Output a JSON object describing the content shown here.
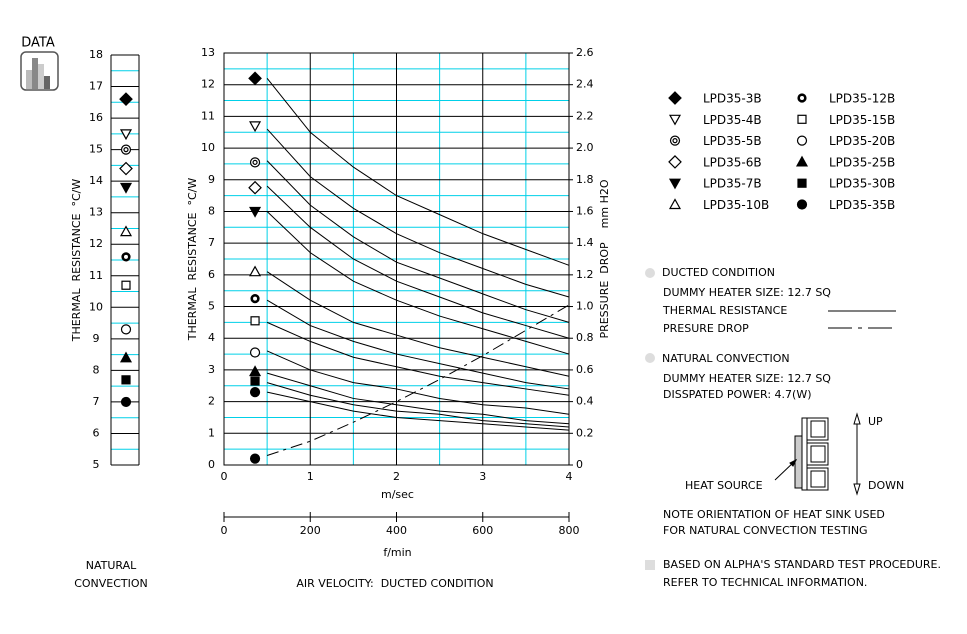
{
  "logo_label": "DATA",
  "chart_data": [
    {
      "type": "dot",
      "caption_lines": [
        "NATURAL",
        "CONVECTION"
      ],
      "y_label": "THERMAL  RESISTANCE  °C/W",
      "ylim": [
        5,
        18
      ],
      "yticks": [
        5,
        6,
        7,
        8,
        9,
        10,
        11,
        12,
        13,
        14,
        15,
        16,
        17,
        18
      ],
      "grid_color": "#000000",
      "minor_grid_color": "#00d0e8",
      "values": [
        16.6,
        15.5,
        15.0,
        14.4,
        13.8,
        12.4,
        11.6,
        10.7,
        9.3,
        8.4,
        7.7,
        7.0
      ]
    },
    {
      "type": "line",
      "caption": "AIR VELOCITY:  DUCTED CONDITION",
      "x_label": "m/sec",
      "y_label": "THERMAL  RESISTANCE  °C/W",
      "y2_label_lines": [
        "PRESSURE  DROP",
        "mm H2O"
      ],
      "x2_label": "f/min",
      "grid_color": "#000000",
      "minor_grid_color": "#00d0e8",
      "xlim": [
        0,
        4
      ],
      "xticks": [
        0,
        1,
        2,
        3,
        4
      ],
      "x2lim": [
        0,
        800
      ],
      "x2ticks": [
        0,
        200,
        400,
        600,
        800
      ],
      "ylim": [
        0,
        13
      ],
      "yticks": [
        0,
        1,
        2,
        3,
        4,
        5,
        6,
        7,
        8,
        9,
        10,
        11,
        12,
        13
      ],
      "y2lim": [
        0,
        2.6
      ],
      "y2ticks": [
        0,
        0.2,
        0.4,
        0.6,
        0.8,
        {
          "value": 1,
          "label": "1.0"
        },
        1.2,
        1.4,
        1.6,
        1.8,
        {
          "value": 2,
          "label": "2.0"
        },
        2.2,
        2.4,
        2.6
      ],
      "x": [
        0.5,
        1,
        1.5,
        2,
        2.5,
        3,
        3.5,
        4
      ],
      "marker_x": 0.36,
      "series": [
        {
          "name": "LPD35-3B",
          "marker": "diamond-filled",
          "color": "#000000",
          "marker_value": 12.2,
          "values": [
            12.2,
            10.5,
            9.4,
            8.5,
            7.9,
            7.3,
            6.8,
            6.3
          ]
        },
        {
          "name": "LPD35-4B",
          "marker": "triangle-down-open",
          "color": "#000000",
          "marker_value": 10.7,
          "values": [
            10.6,
            9.1,
            8.1,
            7.3,
            6.7,
            6.2,
            5.7,
            5.3
          ]
        },
        {
          "name": "LPD35-5B",
          "marker": "double-circle",
          "color": "#000000",
          "marker_value": 9.55,
          "values": [
            9.6,
            8.2,
            7.2,
            6.4,
            5.9,
            5.4,
            4.9,
            4.5
          ]
        },
        {
          "name": "LPD35-6B",
          "marker": "diamond-open",
          "color": "#000000",
          "marker_value": 8.75,
          "values": [
            8.8,
            7.5,
            6.5,
            5.8,
            5.3,
            4.8,
            4.4,
            4.0
          ]
        },
        {
          "name": "LPD35-7B",
          "marker": "triangle-down-filled",
          "color": "#000000",
          "marker_value": 8.0,
          "values": [
            8.0,
            6.7,
            5.8,
            5.2,
            4.7,
            4.3,
            3.9,
            3.5
          ]
        },
        {
          "name": "LPD35-10B",
          "marker": "triangle-up-open",
          "color": "#000000",
          "marker_value": 6.1,
          "values": [
            6.1,
            5.2,
            4.5,
            4.1,
            3.7,
            3.4,
            3.1,
            2.8
          ]
        },
        {
          "name": "LPD35-12B",
          "marker": "ring-bold",
          "color": "#000000",
          "marker_value": 5.25,
          "values": [
            5.2,
            4.4,
            3.9,
            3.5,
            3.2,
            2.9,
            2.6,
            2.4
          ]
        },
        {
          "name": "LPD35-15B",
          "marker": "square-open",
          "color": "#000000",
          "marker_value": 4.55,
          "values": [
            4.5,
            3.9,
            3.4,
            3.1,
            2.8,
            2.6,
            2.4,
            2.2
          ]
        },
        {
          "name": "LPD35-20B",
          "marker": "circle-open",
          "color": "#000000",
          "marker_value": 3.55,
          "values": [
            3.6,
            3.0,
            2.6,
            2.4,
            2.1,
            1.9,
            1.8,
            1.6
          ]
        },
        {
          "name": "LPD35-25B",
          "marker": "triangle-up-filled",
          "color": "#000000",
          "marker_value": 2.95,
          "values": [
            2.9,
            2.5,
            2.1,
            1.9,
            1.7,
            1.6,
            1.4,
            1.3
          ]
        },
        {
          "name": "LPD35-30B",
          "marker": "square-filled",
          "color": "#000000",
          "marker_value": 2.65,
          "values": [
            2.6,
            2.2,
            1.9,
            1.7,
            1.6,
            1.4,
            1.3,
            1.2
          ]
        },
        {
          "name": "LPD35-35B",
          "marker": "circle-filled",
          "color": "#000000",
          "marker_value": 2.3,
          "values": [
            2.3,
            2.0,
            1.7,
            1.5,
            1.4,
            1.3,
            1.2,
            1.1
          ]
        }
      ],
      "pressure_drop": {
        "axis": "y2",
        "color": "#000000",
        "dash": "12 5 3 5",
        "marker_value": 0.04,
        "values": [
          0.06,
          0.15,
          0.27,
          0.4,
          0.54,
          0.69,
          0.85,
          1.01
        ]
      }
    }
  ],
  "notes": {
    "ducted_heading": "DUCTED CONDITION",
    "ducted_heater": "DUMMY HEATER SIZE: 12.7 SQ",
    "thermal_resistance": "THERMAL RESISTANCE",
    "pressure_drop": "PRESURE DROP",
    "natural_heading": "NATURAL CONVECTION",
    "natural_heater": "DUMMY HEATER SIZE: 12.7 SQ",
    "power": "DISSPATED POWER: 4.7(W)",
    "up": "UP",
    "down": "DOWN",
    "heat_source": "HEAT SOURCE",
    "orientation": [
      "NOTE ORIENTATION OF HEAT SINK USED",
      "FOR NATURAL CONVECTION TESTING"
    ],
    "procedure": [
      "BASED ON ALPHA'S STANDARD TEST PROCEDURE.",
      "REFER TO TECHNICAL INFORMATION."
    ]
  }
}
